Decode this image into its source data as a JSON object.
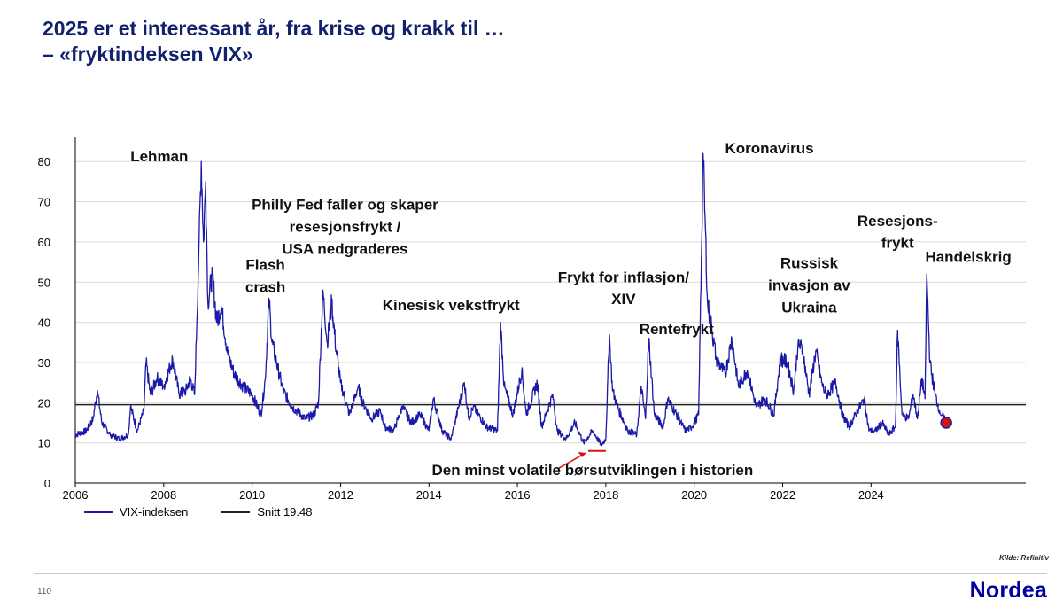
{
  "slide": {
    "title_line1": "2025 er et interessant år, fra krise og krakk til …",
    "title_line2": " – «fryktindeksen VIX»",
    "source": "Kilde: Refinitiv",
    "page_number": "110",
    "brand": "Nordea"
  },
  "colors": {
    "vix": "#1a1aa6",
    "mean": "#222222",
    "marker": "#d21414",
    "title": "#12206e",
    "brand": "#0000a0"
  },
  "chart_data": {
    "type": "line",
    "title": "",
    "xlabel": "",
    "ylabel": "",
    "xlim": [
      2006,
      2027.5
    ],
    "ylim": [
      0,
      86
    ],
    "grid": "horizontal",
    "legend_position": "bottom-left",
    "x_ticks": [
      "2006",
      "2008",
      "2010",
      "2012",
      "2014",
      "2016",
      "2018",
      "2020",
      "2022",
      "2024"
    ],
    "y_ticks": [
      "0",
      "10",
      "20",
      "30",
      "40",
      "50",
      "60",
      "70",
      "80"
    ],
    "series": [
      {
        "name": "VIX-indeksen",
        "points": [
          [
            2006.0,
            12
          ],
          [
            2006.25,
            13
          ],
          [
            2006.4,
            16
          ],
          [
            2006.5,
            23
          ],
          [
            2006.6,
            15
          ],
          [
            2006.8,
            12
          ],
          [
            2007.0,
            11
          ],
          [
            2007.2,
            12
          ],
          [
            2007.25,
            19
          ],
          [
            2007.4,
            13
          ],
          [
            2007.55,
            18
          ],
          [
            2007.6,
            30
          ],
          [
            2007.7,
            22
          ],
          [
            2007.85,
            26
          ],
          [
            2008.0,
            24
          ],
          [
            2008.2,
            31
          ],
          [
            2008.35,
            22
          ],
          [
            2008.5,
            23
          ],
          [
            2008.6,
            26
          ],
          [
            2008.7,
            22
          ],
          [
            2008.75,
            40
          ],
          [
            2008.8,
            60
          ],
          [
            2008.85,
            80
          ],
          [
            2008.9,
            60
          ],
          [
            2008.95,
            75
          ],
          [
            2009.0,
            45
          ],
          [
            2009.1,
            52
          ],
          [
            2009.2,
            40
          ],
          [
            2009.3,
            44
          ],
          [
            2009.45,
            32
          ],
          [
            2009.6,
            27
          ],
          [
            2009.8,
            24
          ],
          [
            2010.0,
            22
          ],
          [
            2010.2,
            17
          ],
          [
            2010.3,
            26
          ],
          [
            2010.38,
            46
          ],
          [
            2010.45,
            35
          ],
          [
            2010.55,
            30
          ],
          [
            2010.7,
            23
          ],
          [
            2010.9,
            19
          ],
          [
            2011.0,
            18
          ],
          [
            2011.2,
            16
          ],
          [
            2011.4,
            17
          ],
          [
            2011.5,
            20
          ],
          [
            2011.6,
            48
          ],
          [
            2011.7,
            35
          ],
          [
            2011.8,
            45
          ],
          [
            2011.9,
            33
          ],
          [
            2012.0,
            25
          ],
          [
            2012.2,
            17
          ],
          [
            2012.4,
            24
          ],
          [
            2012.5,
            20
          ],
          [
            2012.7,
            16
          ],
          [
            2012.9,
            18
          ],
          [
            2013.0,
            14
          ],
          [
            2013.2,
            13
          ],
          [
            2013.4,
            19
          ],
          [
            2013.6,
            15
          ],
          [
            2013.8,
            17
          ],
          [
            2014.0,
            13
          ],
          [
            2014.1,
            21
          ],
          [
            2014.3,
            13
          ],
          [
            2014.5,
            11
          ],
          [
            2014.8,
            25
          ],
          [
            2014.9,
            16
          ],
          [
            2015.0,
            19
          ],
          [
            2015.3,
            14
          ],
          [
            2015.55,
            13
          ],
          [
            2015.62,
            40
          ],
          [
            2015.7,
            24
          ],
          [
            2015.9,
            17
          ],
          [
            2016.1,
            28
          ],
          [
            2016.2,
            17
          ],
          [
            2016.45,
            25
          ],
          [
            2016.55,
            14
          ],
          [
            2016.8,
            22
          ],
          [
            2016.9,
            13
          ],
          [
            2017.1,
            11
          ],
          [
            2017.3,
            15
          ],
          [
            2017.5,
            10
          ],
          [
            2017.7,
            13
          ],
          [
            2017.9,
            9.5
          ],
          [
            2018.0,
            11
          ],
          [
            2018.08,
            37
          ],
          [
            2018.15,
            23
          ],
          [
            2018.3,
            18
          ],
          [
            2018.5,
            13
          ],
          [
            2018.7,
            12
          ],
          [
            2018.8,
            24
          ],
          [
            2018.9,
            16
          ],
          [
            2018.97,
            36
          ],
          [
            2019.1,
            17
          ],
          [
            2019.3,
            14
          ],
          [
            2019.4,
            21
          ],
          [
            2019.6,
            17
          ],
          [
            2019.8,
            13
          ],
          [
            2019.95,
            14
          ],
          [
            2020.1,
            17
          ],
          [
            2020.16,
            55
          ],
          [
            2020.2,
            82
          ],
          [
            2020.3,
            45
          ],
          [
            2020.4,
            38
          ],
          [
            2020.5,
            31
          ],
          [
            2020.7,
            27
          ],
          [
            2020.85,
            36
          ],
          [
            2021.0,
            24
          ],
          [
            2021.2,
            28
          ],
          [
            2021.4,
            19
          ],
          [
            2021.6,
            21
          ],
          [
            2021.8,
            17
          ],
          [
            2021.95,
            31
          ],
          [
            2022.1,
            30
          ],
          [
            2022.25,
            23
          ],
          [
            2022.35,
            35
          ],
          [
            2022.45,
            33
          ],
          [
            2022.6,
            22
          ],
          [
            2022.75,
            33
          ],
          [
            2022.9,
            24
          ],
          [
            2023.0,
            22
          ],
          [
            2023.2,
            25
          ],
          [
            2023.35,
            17
          ],
          [
            2023.5,
            14
          ],
          [
            2023.7,
            18
          ],
          [
            2023.85,
            21
          ],
          [
            2023.95,
            13
          ],
          [
            2024.1,
            13
          ],
          [
            2024.25,
            15
          ],
          [
            2024.4,
            12
          ],
          [
            2024.55,
            14
          ],
          [
            2024.6,
            38
          ],
          [
            2024.7,
            17
          ],
          [
            2024.85,
            16
          ],
          [
            2024.95,
            22
          ],
          [
            2025.05,
            16
          ],
          [
            2025.15,
            26
          ],
          [
            2025.22,
            21
          ],
          [
            2025.26,
            52
          ],
          [
            2025.33,
            30
          ],
          [
            2025.45,
            22
          ],
          [
            2025.55,
            18
          ],
          [
            2025.65,
            16
          ],
          [
            2025.7,
            15
          ]
        ]
      },
      {
        "name": "Snitt 19.48",
        "y": 19.48
      }
    ],
    "highlight_point": [
      2025.7,
      15
    ],
    "min_marker": {
      "x_start": 2017.6,
      "x_end": 2018.0,
      "y": 8
    },
    "annotations": [
      {
        "text": "Lehman",
        "x": 2007.9,
        "y": 80
      },
      {
        "text": "Flash",
        "x": 2010.3,
        "y": 53
      },
      {
        "text": "crash",
        "x": 2010.3,
        "y": 47.5
      },
      {
        "text": "Philly Fed faller og skaper",
        "x": 2012.1,
        "y": 68
      },
      {
        "text": "resesjonsfrykt /",
        "x": 2012.1,
        "y": 62.5
      },
      {
        "text": "USA nedgraderes",
        "x": 2012.1,
        "y": 57
      },
      {
        "text": "Kinesisk vekstfrykt",
        "x": 2014.5,
        "y": 43
      },
      {
        "text": "Frykt for inflasjon/",
        "x": 2018.4,
        "y": 50
      },
      {
        "text": "XIV",
        "x": 2018.4,
        "y": 44.5
      },
      {
        "text": "Rentefrykt",
        "x": 2019.6,
        "y": 37
      },
      {
        "text": "Koronavirus",
        "x": 2021.7,
        "y": 82
      },
      {
        "text": "Russisk",
        "x": 2022.6,
        "y": 53.5
      },
      {
        "text": "invasjon av",
        "x": 2022.6,
        "y": 48
      },
      {
        "text": "Ukraina",
        "x": 2022.6,
        "y": 42.5
      },
      {
        "text": "Resesjons-",
        "x": 2024.6,
        "y": 64
      },
      {
        "text": "frykt",
        "x": 2024.6,
        "y": 58.5
      },
      {
        "text": "Handelskrig",
        "x": 2026.2,
        "y": 55
      },
      {
        "text": "Den minst volatile børsutviklingen i historien",
        "x": 2017.7,
        "y": 2
      }
    ]
  }
}
